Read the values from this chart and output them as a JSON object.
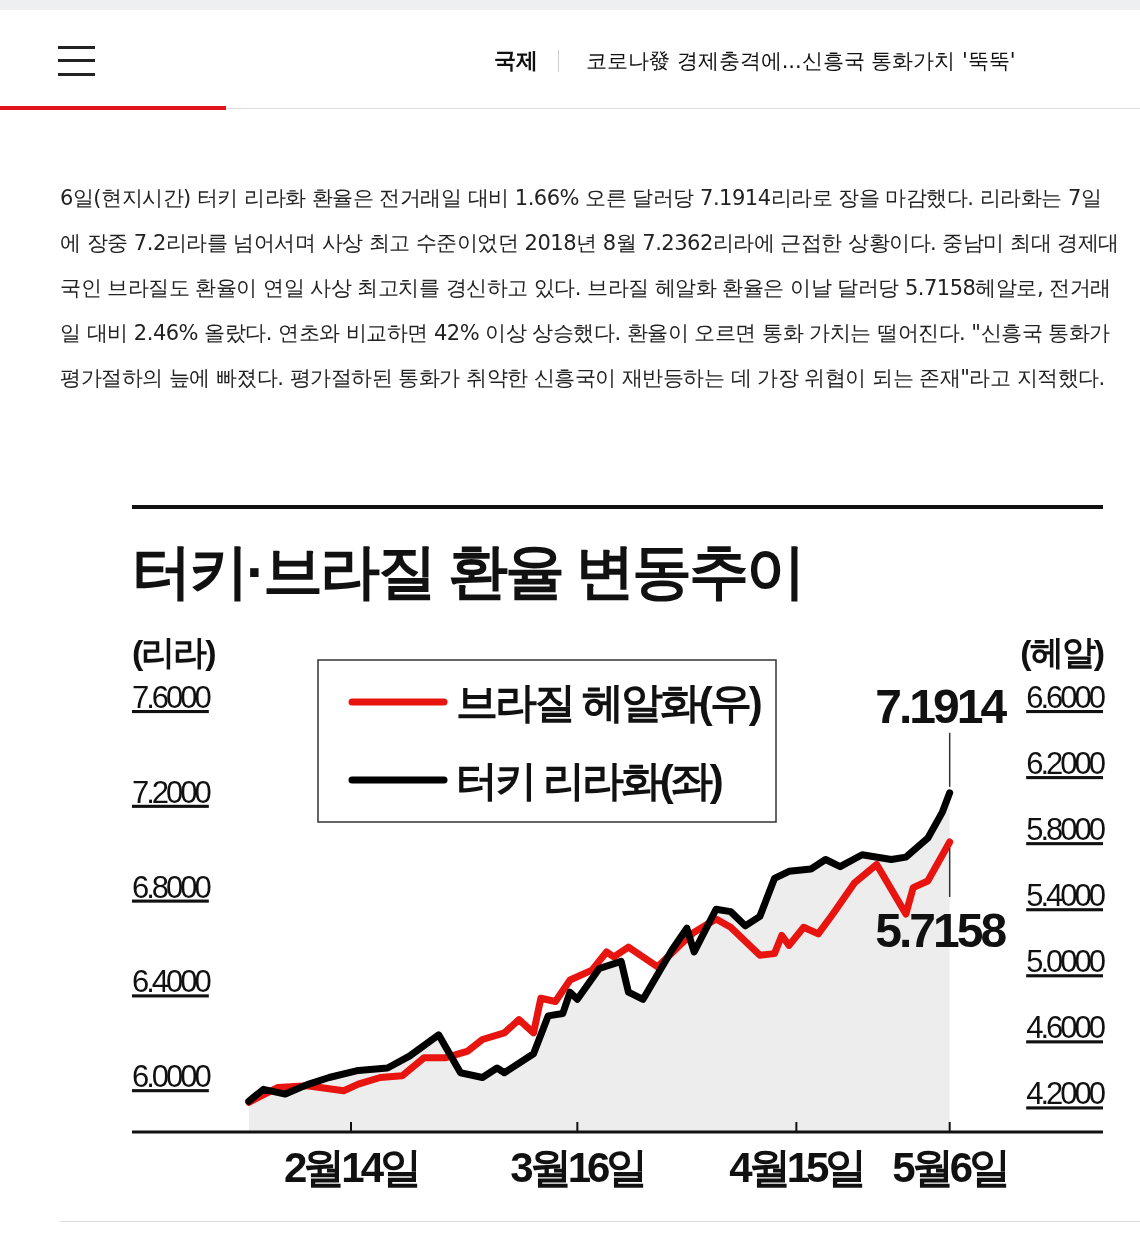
{
  "chart_data": {
    "type": "line",
    "title": "터키·브라질 환율 변동추이",
    "ylabel": "(리라)",
    "y2label": "(헤알)",
    "annotations": [
      "국제",
      "코로나發 경제충격에...신흥국 통화가치 '뚝뚝'",
      "6일(현지시간) 터키 리라화 환율은 전거래일 대비 1.66% 오른 달러당 7.1914리라로 장을 마감했다. 리라화는 7일에 장중 7.2리라를 넘어서며 사상 최고 수준이었던 2018년 8월 7.2362리라에 근접한 상황이다. 중남미 최대 경제대국인 브라질도 환율이 연일 사상 최고치를 경신하고 있다. 브라질 헤알화 환율은 이날 달러당 5.7158헤알로, 전거래일 대비 2.46% 올랐다. 연초와 비교하면 42% 이상 상승했다. 환율이 오르면 통화 가치는 떨어진다. \"신흥국 통화가 평가절하의 늪에 빠졌다. 평가절하된 통화가 취약한 신흥국이 재반등하는 데 가장 위협이 되는 존재\"라고 지적했다."
    ],
    "xlim": [
      "--01-15",
      "--05-27"
    ],
    "xticks": [
      {
        "value": "--02-14",
        "label": "2월14일"
      },
      {
        "value": "--03-16",
        "label": "3월16일"
      },
      {
        "value": "--04-15",
        "label": "4월15일"
      },
      {
        "value": "--05-06",
        "label": "5월6일"
      }
    ],
    "ylim": [
      5.76,
      7.6
    ],
    "yticks": [
      {
        "value": 6.0,
        "label": "6.0000"
      },
      {
        "value": 6.4,
        "label": "6.4000"
      },
      {
        "value": 6.8,
        "label": "6.8000"
      },
      {
        "value": 7.2,
        "label": "7.2000"
      },
      {
        "value": 7.6,
        "label": "7.6000"
      }
    ],
    "y2lim": [
      3.96,
      6.6
    ],
    "y2ticks": [
      {
        "value": 4.2,
        "label": "4.2000"
      },
      {
        "value": 4.6,
        "label": "4.6000"
      },
      {
        "value": 5.0,
        "label": "5.0000"
      },
      {
        "value": 5.4,
        "label": "5.4000"
      },
      {
        "value": 5.8,
        "label": "5.8000"
      },
      {
        "value": 6.2,
        "label": "6.2000"
      },
      {
        "value": 6.6,
        "label": "6.6000"
      }
    ],
    "legend": "top left",
    "series": [
      {
        "name": "브라질 헤알화(우)",
        "type": "line",
        "axis": "y2",
        "color": "#e8140f",
        "x": [
          "--01-31",
          "--02-04",
          "--02-08",
          "--02-13",
          "--02-15",
          "--02-18",
          "--02-21",
          "--02-24",
          "--02-27",
          "--03-01",
          "--03-03",
          "--03-06",
          "--03-08",
          "--03-10",
          "--03-11",
          "--03-13",
          "--03-15",
          "--03-18",
          "--03-20",
          "--03-21",
          "--03-23",
          "--03-27",
          "--03-30",
          "--04-01",
          "--04-04",
          "--04-06",
          "--04-10",
          "--04-12",
          "--04-13",
          "--04-14",
          "--04-16",
          "--04-18",
          "--04-20",
          "--04-23",
          "--04-26",
          "--04-30",
          "--05-01",
          "--05-03",
          "--05-06"
        ],
        "values": [
          4.14,
          4.23,
          4.24,
          4.21,
          4.25,
          4.29,
          4.3,
          4.41,
          4.41,
          4.45,
          4.52,
          4.56,
          4.64,
          4.56,
          4.77,
          4.75,
          4.88,
          4.94,
          5.05,
          5.02,
          5.08,
          4.96,
          5.09,
          5.17,
          5.25,
          5.2,
          5.03,
          5.04,
          5.15,
          5.09,
          5.2,
          5.16,
          5.28,
          5.47,
          5.58,
          5.28,
          5.44,
          5.48,
          5.7158
        ],
        "value_labels": [
          null,
          null,
          null,
          null,
          null,
          null,
          null,
          null,
          null,
          null,
          null,
          null,
          null,
          null,
          null,
          null,
          null,
          null,
          null,
          null,
          null,
          null,
          null,
          null,
          null,
          null,
          null,
          null,
          null,
          null,
          null,
          null,
          null,
          null,
          null,
          null,
          null,
          null,
          "5.7158"
        ]
      },
      {
        "name": "터키 리라화(좌)",
        "type": "area",
        "color": "#000000",
        "x": [
          "--01-31",
          "--02-02",
          "--02-05",
          "--02-08",
          "--02-11",
          "--02-15",
          "--02-19",
          "--02-22",
          "--02-26",
          "--02-29",
          "--03-03",
          "--03-05",
          "--03-06",
          "--03-10",
          "--03-12",
          "--03-14",
          "--03-15",
          "--03-16",
          "--03-19",
          "--03-22",
          "--03-23",
          "--03-25",
          "--03-29",
          "--03-31",
          "--04-01",
          "--04-04",
          "--04-06",
          "--04-08",
          "--04-10",
          "--04-12",
          "--04-14",
          "--04-17",
          "--04-19",
          "--04-21",
          "--04-24",
          "--04-28",
          "--04-30",
          "--05-03",
          "--05-05",
          "--05-06"
        ],
        "values": [
          5.89,
          5.94,
          5.92,
          5.96,
          5.99,
          6.02,
          6.03,
          6.08,
          6.17,
          6.01,
          5.99,
          6.03,
          6.01,
          6.09,
          6.25,
          6.26,
          6.35,
          6.32,
          6.45,
          6.48,
          6.35,
          6.32,
          6.53,
          6.62,
          6.52,
          6.7,
          6.69,
          6.63,
          6.67,
          6.83,
          6.86,
          6.87,
          6.91,
          6.88,
          6.93,
          6.91,
          6.92,
          7.0,
          7.11,
          7.1914
        ],
        "value_labels": [
          null,
          null,
          null,
          null,
          null,
          null,
          null,
          null,
          null,
          null,
          null,
          null,
          null,
          null,
          null,
          null,
          null,
          null,
          null,
          null,
          null,
          null,
          null,
          null,
          null,
          null,
          null,
          null,
          null,
          null,
          null,
          null,
          null,
          null,
          null,
          null,
          null,
          null,
          null,
          "7.1914"
        ]
      }
    ]
  }
}
